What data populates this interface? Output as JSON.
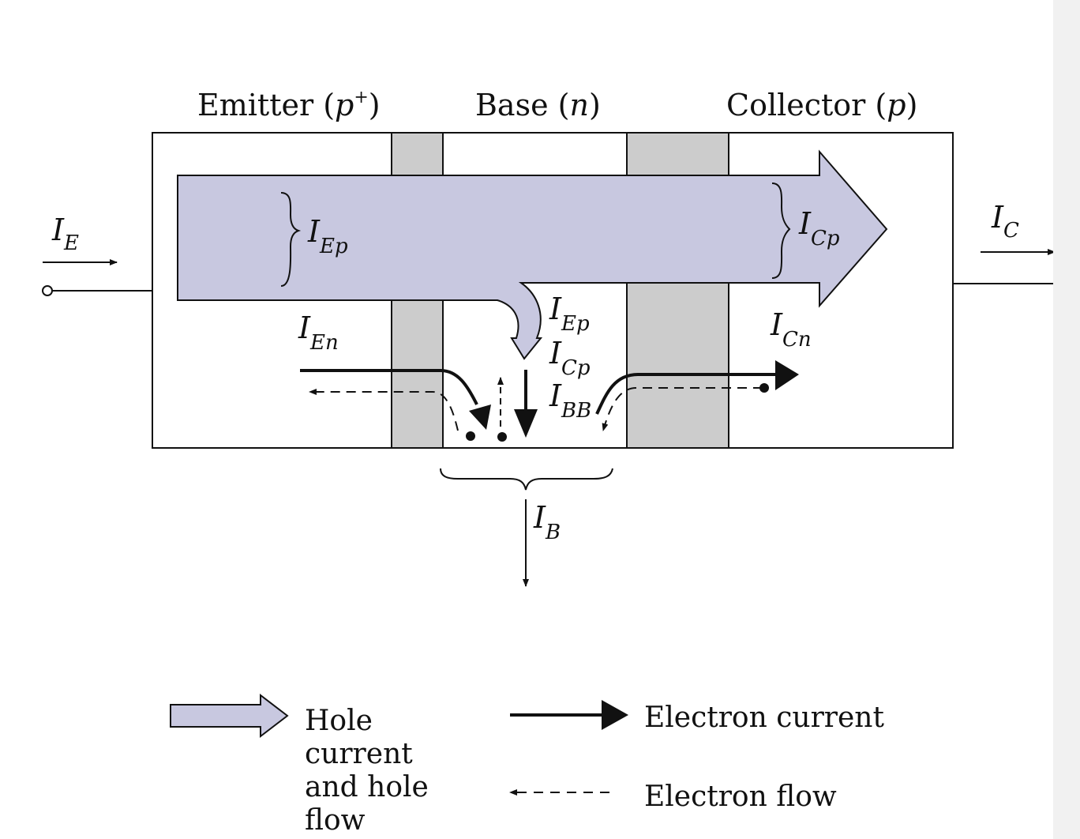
{
  "regions": {
    "emitter_label": "Emitter (",
    "emitter_type": "p",
    "emitter_sup": "+",
    "base_label": "Base (",
    "base_type": "n",
    "collector_label": "Collector (",
    "collector_type": "p",
    "close_paren": ")"
  },
  "currents": {
    "I": "I",
    "IE_sub": "E",
    "IC_sub": "C",
    "IEp_sub": "Ep",
    "ICp_sub": "Cp",
    "IEn_sub": "En",
    "ICn_sub": "Cn",
    "IBB_sub": "BB",
    "IB_sub": "B"
  },
  "legend": {
    "hole_line1": "Hole",
    "hole_line2": "current",
    "hole_line3": "and hole",
    "hole_line4": "flow",
    "electron_current": "Electron current",
    "electron_flow": "Electron flow"
  },
  "colors": {
    "hole_fill": "#c8c8e0",
    "depletion_fill": "#cccccc",
    "line": "#111111"
  }
}
